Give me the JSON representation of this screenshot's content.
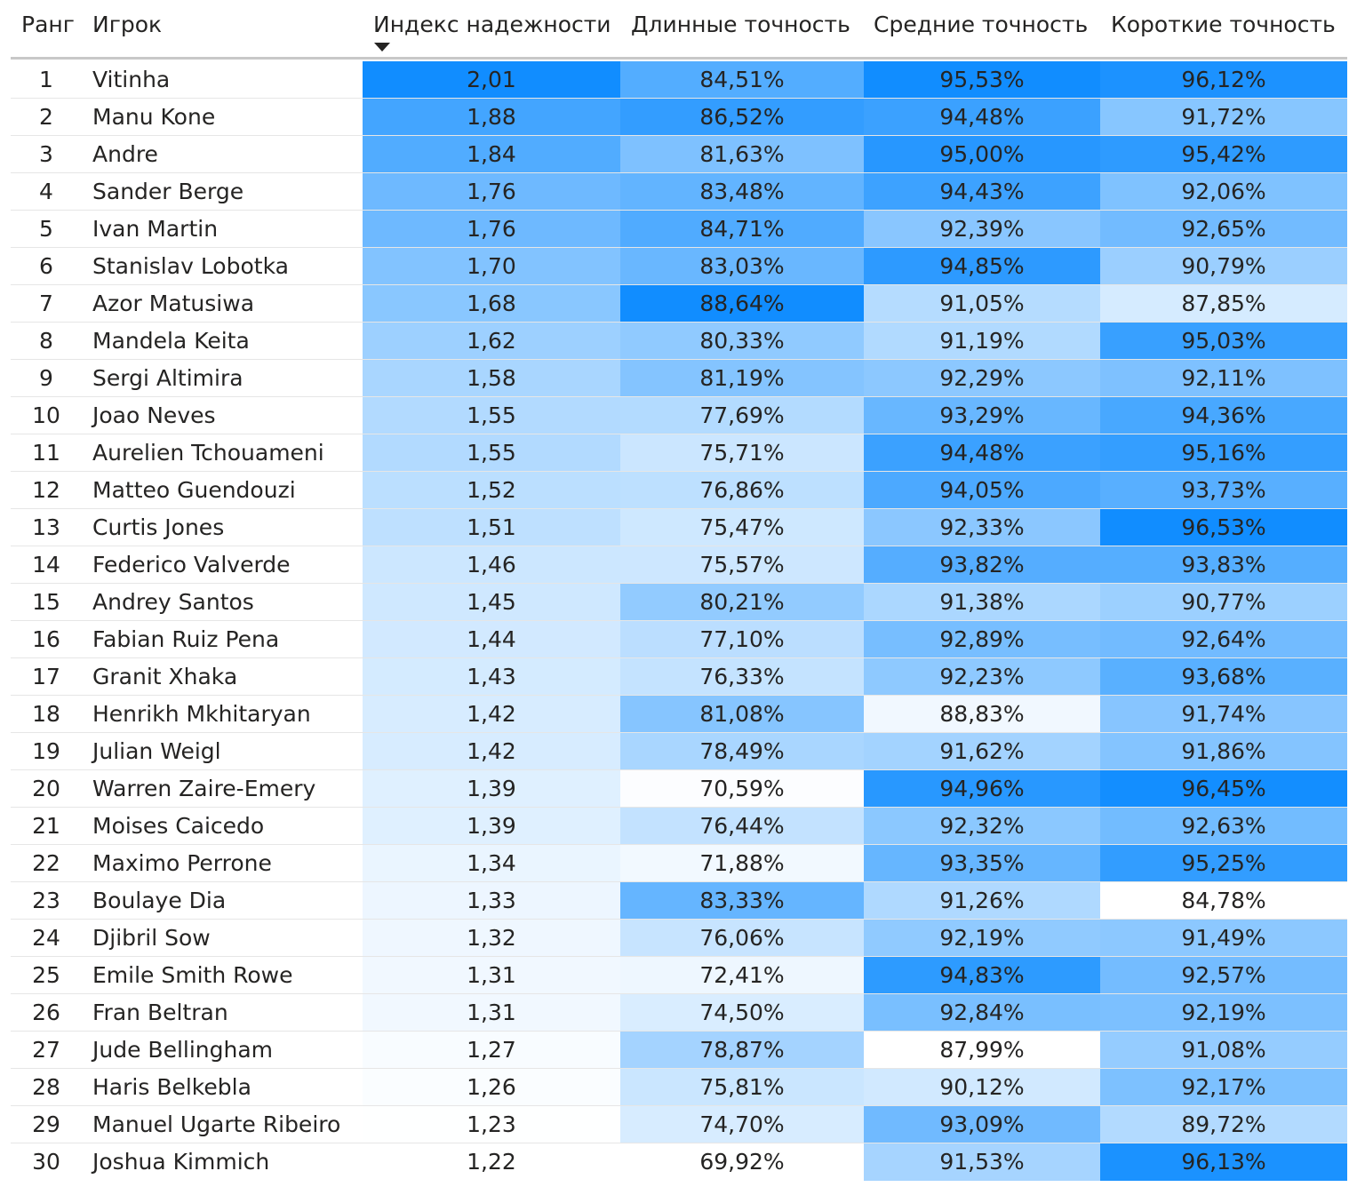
{
  "table": {
    "header": [
      "Ранг",
      "Игрок",
      "Индекс надежности",
      "Длинные точность",
      "Средние точность",
      "Короткие точность"
    ],
    "sorted_column": 2,
    "gradient_colors": [
      "#ffffff",
      "#118dff"
    ],
    "rows": [
      [
        1,
        "Vitinha",
        "2,01",
        "84,51%",
        "95,53%",
        "96,12%"
      ],
      [
        2,
        "Manu Kone",
        "1,88",
        "86,52%",
        "94,48%",
        "91,72%"
      ],
      [
        3,
        "Andre",
        "1,84",
        "81,63%",
        "95,00%",
        "95,42%"
      ],
      [
        4,
        "Sander Berge",
        "1,76",
        "83,48%",
        "94,43%",
        "92,06%"
      ],
      [
        5,
        "Ivan Martin",
        "1,76",
        "84,71%",
        "92,39%",
        "92,65%"
      ],
      [
        6,
        "Stanislav Lobotka",
        "1,70",
        "83,03%",
        "94,85%",
        "90,79%"
      ],
      [
        7,
        "Azor Matusiwa",
        "1,68",
        "88,64%",
        "91,05%",
        "87,85%"
      ],
      [
        8,
        "Mandela Keita",
        "1,62",
        "80,33%",
        "91,19%",
        "95,03%"
      ],
      [
        9,
        "Sergi Altimira",
        "1,58",
        "81,19%",
        "92,29%",
        "92,11%"
      ],
      [
        10,
        "Joao Neves",
        "1,55",
        "77,69%",
        "93,29%",
        "94,36%"
      ],
      [
        11,
        "Aurelien Tchouameni",
        "1,55",
        "75,71%",
        "94,48%",
        "95,16%"
      ],
      [
        12,
        "Matteo Guendouzi",
        "1,52",
        "76,86%",
        "94,05%",
        "93,73%"
      ],
      [
        13,
        "Curtis Jones",
        "1,51",
        "75,47%",
        "92,33%",
        "96,53%"
      ],
      [
        14,
        "Federico Valverde",
        "1,46",
        "75,57%",
        "93,82%",
        "93,83%"
      ],
      [
        15,
        "Andrey Santos",
        "1,45",
        "80,21%",
        "91,38%",
        "90,77%"
      ],
      [
        16,
        "Fabian Ruiz Pena",
        "1,44",
        "77,10%",
        "92,89%",
        "92,64%"
      ],
      [
        17,
        "Granit Xhaka",
        "1,43",
        "76,33%",
        "92,23%",
        "93,68%"
      ],
      [
        18,
        "Henrikh Mkhitaryan",
        "1,42",
        "81,08%",
        "88,83%",
        "91,74%"
      ],
      [
        19,
        "Julian Weigl",
        "1,42",
        "78,49%",
        "91,62%",
        "91,86%"
      ],
      [
        20,
        "Warren Zaire-Emery",
        "1,39",
        "70,59%",
        "94,96%",
        "96,45%"
      ],
      [
        21,
        "Moises Caicedo",
        "1,39",
        "76,44%",
        "92,32%",
        "92,63%"
      ],
      [
        22,
        "Maximo Perrone",
        "1,34",
        "71,88%",
        "93,35%",
        "95,25%"
      ],
      [
        23,
        "Boulaye Dia",
        "1,33",
        "83,33%",
        "91,26%",
        "84,78%"
      ],
      [
        24,
        "Djibril Sow",
        "1,32",
        "76,06%",
        "92,19%",
        "91,49%"
      ],
      [
        25,
        "Emile Smith Rowe",
        "1,31",
        "72,41%",
        "94,83%",
        "92,57%"
      ],
      [
        26,
        "Fran Beltran",
        "1,31",
        "74,50%",
        "92,84%",
        "92,19%"
      ],
      [
        27,
        "Jude Bellingham",
        "1,27",
        "78,87%",
        "87,99%",
        "91,08%"
      ],
      [
        28,
        "Haris Belkebla",
        "1,26",
        "75,81%",
        "90,12%",
        "92,17%"
      ],
      [
        29,
        "Manuel Ugarte Ribeiro",
        "1,23",
        "74,70%",
        "93,09%",
        "89,72%"
      ],
      [
        30,
        "Joshua Kimmich",
        "1,22",
        "69,92%",
        "91,53%",
        "96,13%"
      ]
    ]
  }
}
